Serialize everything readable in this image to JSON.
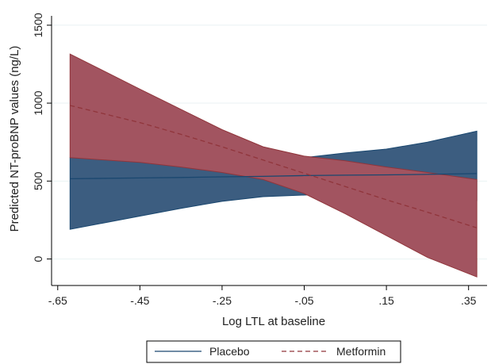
{
  "chart_data": {
    "type": "line",
    "xlabel": "Log LTL at baseline",
    "ylabel": "Predicted NT-proBNP values (ng/L)",
    "xlim": [
      -0.665,
      0.395
    ],
    "ylim": [
      -170,
      1560
    ],
    "x_ticks": [
      -0.65,
      -0.45,
      -0.25,
      -0.05,
      0.15,
      0.35
    ],
    "x_tick_labels": [
      "-.65",
      "-.45",
      "-.25",
      "-.05",
      ".15",
      ".35"
    ],
    "y_ticks": [
      0,
      500,
      1000,
      1500
    ],
    "y_tick_labels": [
      "0",
      "500",
      "1000",
      "1500"
    ],
    "grid": "horizontal",
    "legend_position": "bottom",
    "series": [
      {
        "name": "Placebo",
        "line_style": "solid",
        "color": "#1a476f",
        "band_color": "#3c5d80",
        "x": [
          -0.62,
          -0.45,
          -0.35,
          -0.25,
          -0.15,
          -0.05,
          0.05,
          0.15,
          0.25,
          0.37
        ],
        "y": [
          515,
          520,
          523,
          527,
          530,
          535,
          538,
          540,
          543,
          548
        ],
        "lower": [
          190,
          275,
          325,
          370,
          400,
          410,
          420,
          430,
          415,
          375
        ],
        "upper": [
          650,
          625,
          600,
          570,
          590,
          650,
          680,
          705,
          750,
          820
        ]
      },
      {
        "name": "Metformin",
        "line_style": "dashed",
        "color": "#90353b",
        "band_color": "#a25460",
        "x": [
          -0.62,
          -0.45,
          -0.35,
          -0.25,
          -0.15,
          -0.05,
          0.05,
          0.15,
          0.25,
          0.37
        ],
        "y": [
          985,
          875,
          800,
          720,
          635,
          550,
          465,
          380,
          300,
          200
        ],
        "lower": [
          650,
          620,
          590,
          555,
          510,
          420,
          290,
          150,
          10,
          -115
        ],
        "upper": [
          1315,
          1090,
          960,
          830,
          720,
          660,
          630,
          590,
          555,
          510
        ]
      }
    ]
  }
}
